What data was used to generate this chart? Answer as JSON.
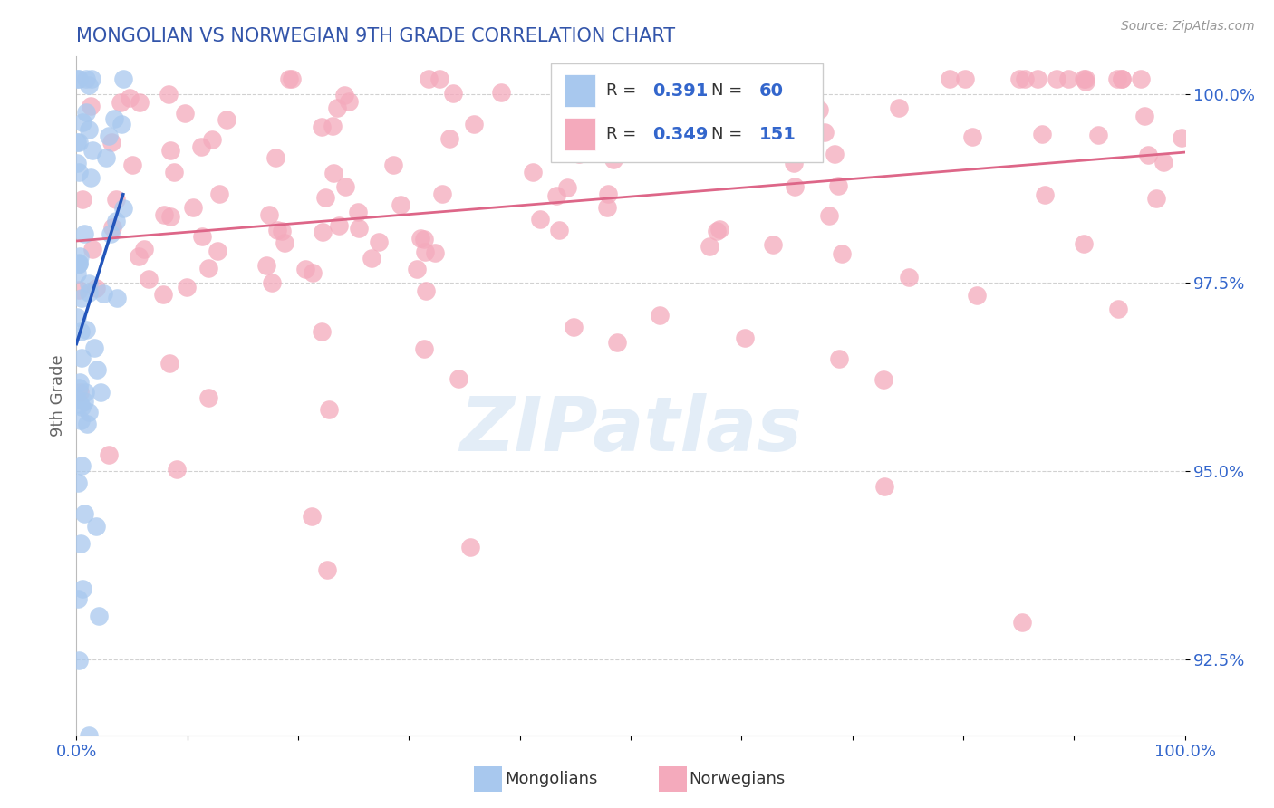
{
  "title": "MONGOLIAN VS NORWEGIAN 9TH GRADE CORRELATION CHART",
  "source": "Source: ZipAtlas.com",
  "ylabel": "9th Grade",
  "xlim": [
    0.0,
    1.0
  ],
  "ylim": [
    0.915,
    1.005
  ],
  "yticks": [
    0.925,
    0.95,
    0.975,
    1.0
  ],
  "ytick_labels": [
    "92.5%",
    "95.0%",
    "97.5%",
    "100.0%"
  ],
  "xticks": [
    0.0,
    0.1,
    0.2,
    0.3,
    0.4,
    0.5,
    0.6,
    0.7,
    0.8,
    0.9,
    1.0
  ],
  "xtick_labels": [
    "0.0%",
    "",
    "",
    "",
    "",
    "",
    "",
    "",
    "",
    "",
    "100.0%"
  ],
  "legend_labels": [
    "Mongolians",
    "Norwegians"
  ],
  "blue_R": 0.391,
  "blue_N": 60,
  "pink_R": 0.349,
  "pink_N": 151,
  "blue_color": "#A8C8EE",
  "pink_color": "#F4AABC",
  "blue_line_color": "#2255BB",
  "pink_line_color": "#DD6688",
  "blue_label_color": "#3366CC",
  "watermark_text": "ZIPatlas",
  "title_color": "#3355AA",
  "seed": 42
}
